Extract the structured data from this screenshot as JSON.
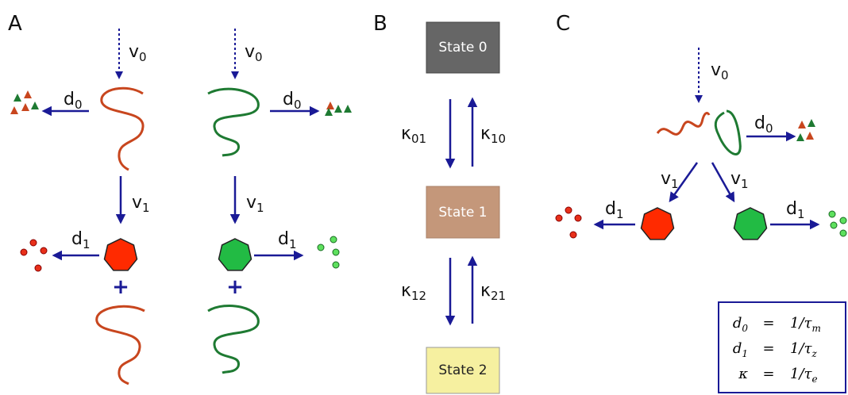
{
  "panel_a": {
    "label": "A",
    "left": {
      "v0": {
        "main": "v",
        "sub": "0"
      },
      "d0": {
        "main": "d",
        "sub": "0"
      },
      "v1": {
        "main": "v",
        "sub": "1"
      },
      "d1": {
        "main": "d",
        "sub": "1"
      },
      "plus": "+"
    },
    "right": {
      "v0": {
        "main": "v",
        "sub": "0"
      },
      "d0": {
        "main": "d",
        "sub": "0"
      },
      "v1": {
        "main": "v",
        "sub": "1"
      },
      "d1": {
        "main": "d",
        "sub": "1"
      },
      "plus": "+"
    }
  },
  "panel_b": {
    "label": "B",
    "states": [
      "State 0",
      "State 1",
      "State 2"
    ],
    "rates": [
      {
        "main": "κ",
        "sub": "01"
      },
      {
        "main": "κ",
        "sub": "10"
      },
      {
        "main": "κ",
        "sub": "12"
      },
      {
        "main": "κ",
        "sub": "21"
      }
    ]
  },
  "panel_c": {
    "label": "C",
    "v0": {
      "main": "v",
      "sub": "0"
    },
    "d0": {
      "main": "d",
      "sub": "0"
    },
    "v1_left": {
      "main": "v",
      "sub": "1"
    },
    "v1_right": {
      "main": "v",
      "sub": "1"
    },
    "d1_left": {
      "main": "d",
      "sub": "1"
    },
    "d1_right": {
      "main": "d",
      "sub": "1"
    },
    "equations": [
      {
        "lhs": {
          "main": "d",
          "sub": "0"
        },
        "op": "=",
        "rhs": {
          "main": "1/τ",
          "sub": "m"
        }
      },
      {
        "lhs": {
          "main": "d",
          "sub": "1"
        },
        "op": "=",
        "rhs": {
          "main": "1/τ",
          "sub": "z"
        }
      },
      {
        "lhs": {
          "main": "κ"
        },
        "op": "=",
        "rhs": {
          "main": "1/τ",
          "sub": "e"
        }
      }
    ]
  }
}
